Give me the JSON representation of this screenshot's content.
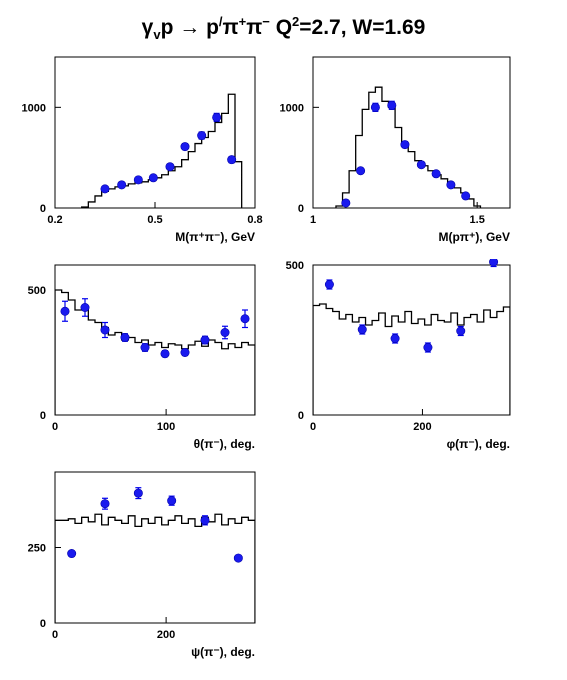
{
  "title": {
    "gamma": "γ",
    "v": "v",
    "p1": "p",
    "arrow": " → ",
    "p2": "p",
    "prime": "/",
    "pi1": "π",
    "plus": "+",
    "pi2": "π",
    "minus": "−",
    "q": "   Q",
    "q_exp": "2",
    "rest": "=2.7, W=1.69"
  },
  "chart_data": [
    {
      "type": "line",
      "xlabel": "M(π⁺π⁻), GeV",
      "xlim": [
        0.2,
        0.8
      ],
      "ylim": [
        0,
        1500
      ],
      "xticks": [
        0.2,
        0.5,
        0.8
      ],
      "xtick_labels": [
        "0.2",
        "0.5",
        "0.8"
      ],
      "yticks": [
        0,
        1000
      ],
      "ytick_labels": [
        "0",
        "1000"
      ],
      "model_hist": {
        "edges": [
          0.28,
          0.3,
          0.32,
          0.34,
          0.36,
          0.38,
          0.4,
          0.42,
          0.44,
          0.46,
          0.48,
          0.5,
          0.52,
          0.54,
          0.56,
          0.58,
          0.6,
          0.62,
          0.64,
          0.66,
          0.68,
          0.7,
          0.72,
          0.74,
          0.76
        ],
        "values": [
          10,
          60,
          120,
          165,
          190,
          210,
          220,
          240,
          250,
          260,
          280,
          300,
          330,
          370,
          410,
          480,
          560,
          640,
          700,
          760,
          850,
          940,
          1130,
          460
        ]
      },
      "points": {
        "x": [
          0.35,
          0.4,
          0.45,
          0.495,
          0.545,
          0.59,
          0.64,
          0.685,
          0.73
        ],
        "y": [
          190,
          230,
          280,
          300,
          410,
          610,
          720,
          900,
          480
        ],
        "err": [
          20,
          20,
          22,
          22,
          25,
          30,
          35,
          40,
          30
        ]
      }
    },
    {
      "type": "line",
      "xlabel": "M(pπ⁺), GeV",
      "xlim": [
        1.0,
        1.6
      ],
      "ylim": [
        0,
        1500
      ],
      "xticks": [
        1.0,
        1.5
      ],
      "xtick_labels": [
        "1",
        "1.5"
      ],
      "yticks": [
        0,
        1000
      ],
      "ytick_labels": [
        "0",
        "1000"
      ],
      "model_hist": {
        "edges": [
          1.07,
          1.09,
          1.11,
          1.13,
          1.15,
          1.17,
          1.19,
          1.21,
          1.23,
          1.25,
          1.27,
          1.29,
          1.31,
          1.33,
          1.35,
          1.37,
          1.39,
          1.41,
          1.43,
          1.45,
          1.47,
          1.49,
          1.51
        ],
        "values": [
          20,
          150,
          370,
          720,
          980,
          1150,
          1200,
          1060,
          1000,
          800,
          640,
          560,
          470,
          420,
          370,
          330,
          290,
          240,
          200,
          150,
          90,
          20
        ]
      },
      "points": {
        "x": [
          1.1,
          1.145,
          1.19,
          1.24,
          1.28,
          1.33,
          1.375,
          1.42,
          1.465
        ],
        "y": [
          50,
          370,
          1000,
          1020,
          630,
          430,
          340,
          230,
          120
        ],
        "err": [
          10,
          25,
          40,
          40,
          30,
          25,
          20,
          18,
          12
        ]
      }
    },
    {
      "type": "line",
      "xlabel": "θ(π⁻), deg.",
      "xlim": [
        0,
        180
      ],
      "ylim": [
        0,
        600
      ],
      "xticks": [
        0,
        100
      ],
      "xtick_labels": [
        "0",
        "100"
      ],
      "yticks": [
        0,
        500
      ],
      "ytick_labels": [
        "0",
        "500"
      ],
      "model_hist": {
        "edges": [
          0,
          6,
          12,
          18,
          24,
          30,
          36,
          42,
          48,
          54,
          60,
          66,
          72,
          78,
          84,
          90,
          96,
          102,
          108,
          114,
          120,
          126,
          132,
          138,
          144,
          150,
          156,
          162,
          168,
          174,
          180
        ],
        "values": [
          500,
          490,
          460,
          420,
          430,
          380,
          370,
          350,
          320,
          330,
          300,
          310,
          290,
          300,
          280,
          290,
          270,
          285,
          280,
          265,
          280,
          295,
          275,
          300,
          290,
          265,
          285,
          270,
          290,
          280
        ]
      },
      "points": {
        "x": [
          9,
          27,
          45,
          63,
          81,
          99,
          117,
          135,
          153,
          171
        ],
        "y": [
          415,
          430,
          340,
          310,
          270,
          245,
          250,
          300,
          330,
          385
        ],
        "err": [
          40,
          35,
          30,
          15,
          15,
          12,
          12,
          15,
          25,
          35
        ]
      }
    },
    {
      "type": "line",
      "xlabel": "φ(π⁻), deg.",
      "xlim": [
        0,
        360
      ],
      "ylim": [
        0,
        500
      ],
      "xticks": [
        0,
        200
      ],
      "xtick_labels": [
        "0",
        "200"
      ],
      "yticks": [
        0,
        500
      ],
      "ytick_labels": [
        "0",
        "500"
      ],
      "model_hist": {
        "edges": [
          0,
          12,
          24,
          36,
          48,
          60,
          72,
          84,
          96,
          108,
          120,
          132,
          144,
          156,
          168,
          180,
          192,
          204,
          216,
          228,
          240,
          252,
          264,
          276,
          288,
          300,
          312,
          324,
          336,
          348,
          360
        ],
        "values": [
          365,
          370,
          355,
          345,
          320,
          335,
          310,
          325,
          300,
          315,
          340,
          295,
          330,
          310,
          345,
          305,
          320,
          300,
          335,
          315,
          310,
          340,
          300,
          325,
          335,
          310,
          350,
          325,
          345,
          360
        ]
      },
      "points": {
        "x": [
          30,
          90,
          150,
          210,
          270,
          330
        ],
        "y": [
          435,
          285,
          255,
          225,
          280,
          510
        ],
        "err": [
          15,
          15,
          15,
          15,
          15,
          15
        ]
      }
    },
    {
      "type": "line",
      "xlabel": "ψ(π⁻), deg.",
      "xlim": [
        0,
        360
      ],
      "ylim": [
        0,
        500
      ],
      "xticks": [
        0,
        200
      ],
      "xtick_labels": [
        "0",
        "200"
      ],
      "yticks": [
        0,
        250
      ],
      "ytick_labels": [
        "0",
        "250"
      ],
      "model_hist": {
        "edges": [
          0,
          12,
          24,
          36,
          48,
          60,
          72,
          84,
          96,
          108,
          120,
          132,
          144,
          156,
          168,
          180,
          192,
          204,
          216,
          228,
          240,
          252,
          264,
          276,
          288,
          300,
          312,
          324,
          336,
          348,
          360
        ],
        "values": [
          340,
          340,
          345,
          330,
          350,
          335,
          360,
          325,
          350,
          340,
          330,
          355,
          320,
          345,
          330,
          350,
          325,
          340,
          355,
          330,
          345,
          320,
          350,
          335,
          360,
          325,
          345,
          330,
          350,
          340
        ]
      },
      "points": {
        "x": [
          30,
          90,
          150,
          210,
          270,
          330
        ],
        "y": [
          230,
          395,
          430,
          405,
          340,
          215
        ],
        "err": [
          8,
          18,
          18,
          15,
          15,
          8
        ]
      }
    }
  ]
}
